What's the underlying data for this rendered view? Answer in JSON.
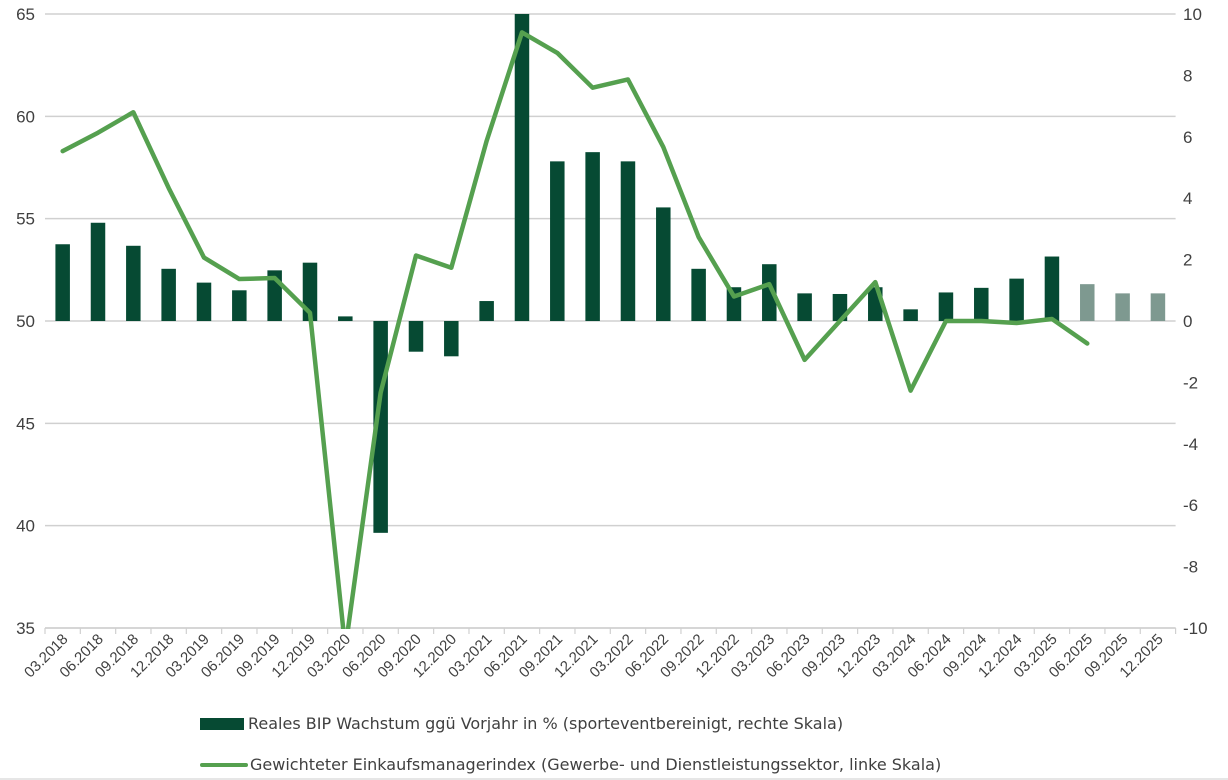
{
  "chart_data": {
    "type": "bar+line",
    "title": "",
    "categories": [
      "03.2018",
      "06.2018",
      "09.2018",
      "12.2018",
      "03.2019",
      "06.2019",
      "09.2019",
      "12.2019",
      "03.2020",
      "06.2020",
      "09.2020",
      "12.2020",
      "03.2021",
      "06.2021",
      "09.2021",
      "12.2021",
      "03.2022",
      "06.2022",
      "09.2022",
      "12.2022",
      "03.2023",
      "06.2023",
      "09.2023",
      "12.2023",
      "03.2024",
      "06.2024",
      "09.2024",
      "12.2024",
      "03.2025",
      "06.2025",
      "09.2025",
      "12.2025"
    ],
    "left_axis": {
      "ylim": [
        35,
        65
      ],
      "ticks": [
        "65",
        "60",
        "55",
        "50",
        "45",
        "40",
        "35"
      ],
      "tick_values": [
        65,
        60,
        55,
        50,
        45,
        40,
        35
      ]
    },
    "right_axis": {
      "ylim": [
        -10,
        10
      ],
      "ticks": [
        "10",
        "8",
        "6",
        "4",
        "2",
        "0",
        "-2",
        "-4",
        "-6",
        "-8",
        "-10"
      ],
      "tick_values": [
        10,
        8,
        6,
        4,
        2,
        0,
        -2,
        -4,
        -6,
        -8,
        -10
      ]
    },
    "grid": true,
    "legend_position": "bottom",
    "series": [
      {
        "name": "Reales BIP Wachstum ggü Vorjahr in % (sporteventbereinigt, rechte Skala)",
        "type": "bar",
        "axis": "right",
        "color": "#064a33",
        "forecast_color": "#7e9990",
        "forecast_from_index": 29,
        "values": [
          2.5,
          3.2,
          2.45,
          1.7,
          1.25,
          1.0,
          1.65,
          1.9,
          0.15,
          -6.9,
          -1.0,
          -1.15,
          0.65,
          10.0,
          5.2,
          5.5,
          5.2,
          3.7,
          1.7,
          1.1,
          1.85,
          0.9,
          0.88,
          1.1,
          0.38,
          0.93,
          1.08,
          1.38,
          2.1,
          1.2,
          0.9,
          0.9
        ]
      },
      {
        "name": "Gewichteter Einkaufsmanagerindex (Gewerbe- und Dienstleistungssektor, linke Skala)",
        "type": "line",
        "axis": "left",
        "color": "#55a04f",
        "values": [
          58.3,
          59.2,
          60.2,
          56.5,
          53.1,
          52.05,
          52.1,
          50.4,
          34.0,
          46.5,
          53.2,
          52.6,
          58.8,
          64.1,
          63.1,
          61.4,
          61.8,
          58.5,
          54.1,
          51.2,
          51.8,
          48.1,
          50.0,
          51.9,
          46.6,
          50.0,
          50.0,
          49.9,
          50.1,
          48.9,
          null,
          null
        ]
      }
    ]
  }
}
